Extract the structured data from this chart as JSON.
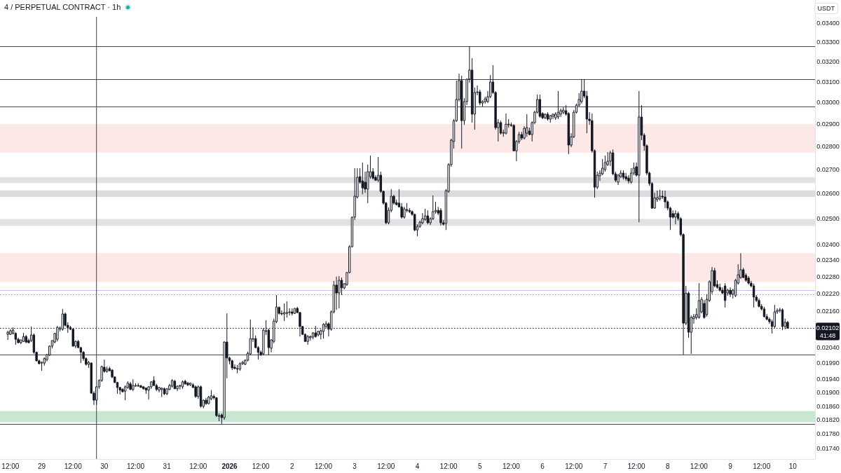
{
  "chart_data": {
    "type": "candlestick",
    "title": "4 / PERPETUAL CONTRACT · 1h",
    "ylabel": "USDT",
    "annotations": [
      "41:48"
    ],
    "color": "#131722",
    "log": true,
    "xlim": [
      "2025-12-28T08:00",
      "2026-01-10T08:30"
    ],
    "ylim": [
      0.01711,
      0.03525
    ],
    "xticks": [
      {
        "value": "2025-12-28T12:00",
        "label": "12:00"
      },
      {
        "value": "2025-12-29",
        "label": "29"
      },
      {
        "value": "2025-12-29T12:00",
        "label": "12:00"
      },
      {
        "value": "2025-12-30",
        "label": "30"
      },
      {
        "value": "2025-12-30T12:00",
        "label": "12:00"
      },
      {
        "value": "2025-12-31",
        "label": "31"
      },
      {
        "value": "2025-12-31T12:00",
        "label": "12:00"
      },
      {
        "value": "2026-01-01",
        "label": "2026"
      },
      {
        "value": "2026-01-01T12:00",
        "label": "12:00"
      },
      {
        "value": "2026-01-02",
        "label": "2"
      },
      {
        "value": "2026-01-02T12:00",
        "label": "12:00"
      },
      {
        "value": "2026-01-03",
        "label": "3"
      },
      {
        "value": "2026-01-03T12:00",
        "label": "12:00"
      },
      {
        "value": "2026-01-04",
        "label": "4"
      },
      {
        "value": "2026-01-04T12:00",
        "label": "12:00"
      },
      {
        "value": "2026-01-05",
        "label": "5"
      },
      {
        "value": "2026-01-05T12:00",
        "label": "12:00"
      },
      {
        "value": "2026-01-06",
        "label": "6"
      },
      {
        "value": "2026-01-06T12:00",
        "label": "12:00"
      },
      {
        "value": "2026-01-07",
        "label": "7"
      },
      {
        "value": "2026-01-07T12:00",
        "label": "12:00"
      },
      {
        "value": "2026-01-08",
        "label": "8"
      },
      {
        "value": "2026-01-08T12:00",
        "label": "12:00"
      },
      {
        "value": "2026-01-09",
        "label": "9"
      },
      {
        "value": "2026-01-09T12:00",
        "label": "12:00"
      },
      {
        "value": "2026-01-10",
        "label": "10"
      }
    ],
    "yticks": [
      {
        "value": 0.034,
        "label": "0.03400"
      },
      {
        "value": 0.033,
        "label": "0.03300"
      },
      {
        "value": 0.032,
        "label": "0.03200"
      },
      {
        "value": 0.031,
        "label": "0.03100"
      },
      {
        "value": 0.03,
        "label": "0.03000"
      },
      {
        "value": 0.029,
        "label": "0.02900"
      },
      {
        "value": 0.028,
        "label": "0.02800"
      },
      {
        "value": 0.027,
        "label": "0.02700"
      },
      {
        "value": 0.026,
        "label": "0.02600"
      },
      {
        "value": 0.025,
        "label": "0.02500"
      },
      {
        "value": 0.024,
        "label": "0.02400"
      },
      {
        "value": 0.0234,
        "label": "0.02340"
      },
      {
        "value": 0.0228,
        "label": "0.02280"
      },
      {
        "value": 0.0222,
        "label": "0.02220"
      },
      {
        "value": 0.0216,
        "label": "0.02160"
      },
      {
        "value": 0.0204,
        "label": "0.02040"
      },
      {
        "value": 0.0199,
        "label": "0.01990"
      },
      {
        "value": 0.0194,
        "label": "0.01940"
      },
      {
        "value": 0.019,
        "label": "0.01900"
      },
      {
        "value": 0.0186,
        "label": "0.01860"
      },
      {
        "value": 0.0182,
        "label": "0.01820"
      },
      {
        "value": 0.0178,
        "label": "0.01780"
      },
      {
        "value": 0.0174,
        "label": "0.01740"
      }
    ],
    "bands": [
      {
        "axis": "y",
        "from": 0.02772,
        "to": 0.029,
        "color": "#fde8e8"
      },
      {
        "axis": "y",
        "from": 0.02261,
        "to": 0.02366,
        "color": "#fde8e8"
      },
      {
        "axis": "y",
        "from": 0.02585,
        "to": 0.02612,
        "color": "#dcdcdf"
      },
      {
        "axis": "y",
        "from": 0.02642,
        "to": 0.02667,
        "color": "#e2e2e5"
      },
      {
        "axis": "y",
        "from": 0.0247,
        "to": 0.02497,
        "color": "#e2e2e5"
      },
      {
        "axis": "y",
        "from": 0.01813,
        "to": 0.01845,
        "color": "#c8e6d2"
      }
    ],
    "ref_lines": [
      {
        "axis": "y",
        "value": 0.03277,
        "color": "#434651"
      },
      {
        "axis": "y",
        "value": 0.03112,
        "color": "#434651"
      },
      {
        "axis": "y",
        "value": 0.02981,
        "color": "#434651"
      },
      {
        "axis": "y",
        "value": 0.02017,
        "color": "#434651"
      },
      {
        "axis": "y",
        "value": 0.01808,
        "color": "#434651"
      },
      {
        "axis": "y",
        "value": 0.02218,
        "color": "#9598a1",
        "line_style": "dotted"
      },
      {
        "axis": "y",
        "value": 0.02233,
        "color": "#c9bde6"
      },
      {
        "axis": "x",
        "value": "2025-12-29T21:00",
        "color": "#434651"
      },
      {
        "axis": "y",
        "value": 0.02102,
        "label": "0.02102",
        "color": "#131722",
        "line_style": "dotted"
      }
    ],
    "x": [
      "2025-12-28T11:00",
      "2025-12-28T12:00",
      "2025-12-28T13:00",
      "2025-12-28T14:00",
      "2025-12-28T15:00",
      "2025-12-28T16:00",
      "2025-12-28T17:00",
      "2025-12-28T18:00",
      "2025-12-28T19:00",
      "2025-12-28T20:00",
      "2025-12-28T21:00",
      "2025-12-28T22:00",
      "2025-12-28T23:00",
      "2025-12-29T00:00",
      "2025-12-29T01:00",
      "2025-12-29T02:00",
      "2025-12-29T03:00",
      "2025-12-29T04:00",
      "2025-12-29T05:00",
      "2025-12-29T06:00",
      "2025-12-29T07:00",
      "2025-12-29T08:00",
      "2025-12-29T09:00",
      "2025-12-29T10:00",
      "2025-12-29T11:00",
      "2025-12-29T12:00",
      "2025-12-29T13:00",
      "2025-12-29T14:00",
      "2025-12-29T15:00",
      "2025-12-29T16:00",
      "2025-12-29T17:00",
      "2025-12-29T18:00",
      "2025-12-29T19:00",
      "2025-12-29T20:00",
      "2025-12-29T21:00",
      "2025-12-29T22:00",
      "2025-12-29T23:00",
      "2025-12-30T00:00",
      "2025-12-30T01:00",
      "2025-12-30T02:00",
      "2025-12-30T03:00",
      "2025-12-30T04:00",
      "2025-12-30T05:00",
      "2025-12-30T06:00",
      "2025-12-30T07:00",
      "2025-12-30T08:00",
      "2025-12-30T09:00",
      "2025-12-30T10:00",
      "2025-12-30T11:00",
      "2025-12-30T12:00",
      "2025-12-30T13:00",
      "2025-12-30T14:00",
      "2025-12-30T15:00",
      "2025-12-30T16:00",
      "2025-12-30T17:00",
      "2025-12-30T18:00",
      "2025-12-30T19:00",
      "2025-12-30T20:00",
      "2025-12-30T21:00",
      "2025-12-30T22:00",
      "2025-12-30T23:00",
      "2025-12-31T00:00",
      "2025-12-31T01:00",
      "2025-12-31T02:00",
      "2025-12-31T03:00",
      "2025-12-31T04:00",
      "2025-12-31T05:00",
      "2025-12-31T06:00",
      "2025-12-31T07:00",
      "2025-12-31T08:00",
      "2025-12-31T09:00",
      "2025-12-31T10:00",
      "2025-12-31T11:00",
      "2025-12-31T12:00",
      "2025-12-31T13:00",
      "2025-12-31T14:00",
      "2025-12-31T15:00",
      "2025-12-31T16:00",
      "2025-12-31T17:00",
      "2025-12-31T18:00",
      "2025-12-31T19:00",
      "2025-12-31T20:00",
      "2025-12-31T21:00",
      "2025-12-31T22:00",
      "2025-12-31T23:00",
      "2026-01-01T00:00",
      "2026-01-01T01:00",
      "2026-01-01T02:00",
      "2026-01-01T03:00",
      "2026-01-01T04:00",
      "2026-01-01T05:00",
      "2026-01-01T06:00",
      "2026-01-01T07:00",
      "2026-01-01T08:00",
      "2026-01-01T09:00",
      "2026-01-01T10:00",
      "2026-01-01T11:00",
      "2026-01-01T12:00",
      "2026-01-01T13:00",
      "2026-01-01T14:00",
      "2026-01-01T15:00",
      "2026-01-01T16:00",
      "2026-01-01T17:00",
      "2026-01-01T18:00",
      "2026-01-01T19:00",
      "2026-01-01T20:00",
      "2026-01-01T21:00",
      "2026-01-01T22:00",
      "2026-01-01T23:00",
      "2026-01-02T00:00",
      "2026-01-02T01:00",
      "2026-01-02T02:00",
      "2026-01-02T03:00",
      "2026-01-02T04:00",
      "2026-01-02T05:00",
      "2026-01-02T06:00",
      "2026-01-02T07:00",
      "2026-01-02T08:00",
      "2026-01-02T09:00",
      "2026-01-02T10:00",
      "2026-01-02T11:00",
      "2026-01-02T12:00",
      "2026-01-02T13:00",
      "2026-01-02T14:00",
      "2026-01-02T15:00",
      "2026-01-02T16:00",
      "2026-01-02T17:00",
      "2026-01-02T18:00",
      "2026-01-02T19:00",
      "2026-01-02T20:00",
      "2026-01-02T21:00",
      "2026-01-02T22:00",
      "2026-01-02T23:00",
      "2026-01-03T00:00",
      "2026-01-03T01:00",
      "2026-01-03T02:00",
      "2026-01-03T03:00",
      "2026-01-03T04:00",
      "2026-01-03T05:00",
      "2026-01-03T06:00",
      "2026-01-03T07:00",
      "2026-01-03T08:00",
      "2026-01-03T09:00",
      "2026-01-03T10:00",
      "2026-01-03T11:00",
      "2026-01-03T12:00",
      "2026-01-03T13:00",
      "2026-01-03T14:00",
      "2026-01-03T15:00",
      "2026-01-03T16:00",
      "2026-01-03T17:00",
      "2026-01-03T18:00",
      "2026-01-03T19:00",
      "2026-01-03T20:00",
      "2026-01-03T21:00",
      "2026-01-03T22:00",
      "2026-01-03T23:00",
      "2026-01-04T00:00",
      "2026-01-04T01:00",
      "2026-01-04T02:00",
      "2026-01-04T03:00",
      "2026-01-04T04:00",
      "2026-01-04T05:00",
      "2026-01-04T06:00",
      "2026-01-04T07:00",
      "2026-01-04T08:00",
      "2026-01-04T09:00",
      "2026-01-04T10:00",
      "2026-01-04T11:00",
      "2026-01-04T12:00",
      "2026-01-04T13:00",
      "2026-01-04T14:00",
      "2026-01-04T15:00",
      "2026-01-04T16:00",
      "2026-01-04T17:00",
      "2026-01-04T18:00",
      "2026-01-04T19:00",
      "2026-01-04T20:00",
      "2026-01-04T21:00",
      "2026-01-04T22:00",
      "2026-01-04T23:00",
      "2026-01-05T00:00",
      "2026-01-05T01:00",
      "2026-01-05T02:00",
      "2026-01-05T03:00",
      "2026-01-05T04:00",
      "2026-01-05T05:00",
      "2026-01-05T06:00",
      "2026-01-05T07:00",
      "2026-01-05T08:00",
      "2026-01-05T09:00",
      "2026-01-05T10:00",
      "2026-01-05T11:00",
      "2026-01-05T12:00",
      "2026-01-05T13:00",
      "2026-01-05T14:00",
      "2026-01-05T15:00",
      "2026-01-05T16:00",
      "2026-01-05T17:00",
      "2026-01-05T18:00",
      "2026-01-05T19:00",
      "2026-01-05T20:00",
      "2026-01-05T21:00",
      "2026-01-05T22:00",
      "2026-01-05T23:00",
      "2026-01-06T00:00",
      "2026-01-06T01:00",
      "2026-01-06T02:00",
      "2026-01-06T03:00",
      "2026-01-06T04:00",
      "2026-01-06T05:00",
      "2026-01-06T06:00",
      "2026-01-06T07:00",
      "2026-01-06T08:00",
      "2026-01-06T09:00",
      "2026-01-06T10:00",
      "2026-01-06T11:00",
      "2026-01-06T12:00",
      "2026-01-06T13:00",
      "2026-01-06T14:00",
      "2026-01-06T15:00",
      "2026-01-06T16:00",
      "2026-01-06T17:00",
      "2026-01-06T18:00",
      "2026-01-06T19:00",
      "2026-01-06T20:00",
      "2026-01-06T21:00",
      "2026-01-06T22:00",
      "2026-01-06T23:00",
      "2026-01-07T00:00",
      "2026-01-07T01:00",
      "2026-01-07T02:00",
      "2026-01-07T03:00",
      "2026-01-07T04:00",
      "2026-01-07T05:00",
      "2026-01-07T06:00",
      "2026-01-07T07:00",
      "2026-01-07T08:00",
      "2026-01-07T09:00",
      "2026-01-07T10:00",
      "2026-01-07T11:00",
      "2026-01-07T12:00",
      "2026-01-07T13:00",
      "2026-01-07T14:00",
      "2026-01-07T15:00",
      "2026-01-07T16:00",
      "2026-01-07T17:00",
      "2026-01-07T18:00",
      "2026-01-07T19:00",
      "2026-01-07T20:00",
      "2026-01-07T21:00",
      "2026-01-07T22:00",
      "2026-01-07T23:00",
      "2026-01-08T00:00",
      "2026-01-08T01:00",
      "2026-01-08T02:00",
      "2026-01-08T03:00",
      "2026-01-08T04:00",
      "2026-01-08T05:00",
      "2026-01-08T06:00",
      "2026-01-08T07:00",
      "2026-01-08T08:00",
      "2026-01-08T09:00",
      "2026-01-08T10:00",
      "2026-01-08T11:00",
      "2026-01-08T12:00",
      "2026-01-08T13:00",
      "2026-01-08T14:00",
      "2026-01-08T15:00",
      "2026-01-08T16:00",
      "2026-01-08T17:00",
      "2026-01-08T18:00",
      "2026-01-08T19:00",
      "2026-01-08T20:00",
      "2026-01-08T21:00",
      "2026-01-08T22:00",
      "2026-01-08T23:00",
      "2026-01-09T00:00",
      "2026-01-09T01:00",
      "2026-01-09T02:00",
      "2026-01-09T03:00",
      "2026-01-09T04:00",
      "2026-01-09T05:00",
      "2026-01-09T06:00",
      "2026-01-09T07:00",
      "2026-01-09T08:00",
      "2026-01-09T09:00",
      "2026-01-09T10:00",
      "2026-01-09T11:00",
      "2026-01-09T12:00",
      "2026-01-09T13:00",
      "2026-01-09T14:00",
      "2026-01-09T15:00",
      "2026-01-09T16:00",
      "2026-01-09T17:00",
      "2026-01-09T18:00",
      "2026-01-09T19:00",
      "2026-01-09T20:00",
      "2026-01-09T21:00",
      "2026-01-09T22:00"
    ],
    "ohlc": [
      [
        0.02082,
        0.02094,
        0.02064,
        0.02089
      ],
      [
        0.02082,
        0.02099,
        0.0208,
        0.02094
      ],
      [
        0.02085,
        0.02105,
        0.02082,
        0.02096
      ],
      [
        0.02085,
        0.02089,
        0.02048,
        0.02066
      ],
      [
        0.02066,
        0.02071,
        0.02053,
        0.02055
      ],
      [
        0.02055,
        0.02064,
        0.0205,
        0.02064
      ],
      [
        0.02059,
        0.02087,
        0.02057,
        0.02075
      ],
      [
        0.02075,
        0.0208,
        0.02053,
        0.02057
      ],
      [
        0.02062,
        0.02068,
        0.02053,
        0.02055
      ],
      [
        0.02062,
        0.02108,
        0.02057,
        0.0208
      ],
      [
        0.0208,
        0.02085,
        0.02019,
        0.02024
      ],
      [
        0.02024,
        0.02026,
        0.01995,
        0.01997
      ],
      [
        0.01997,
        0.02001,
        0.01986,
        0.01988
      ],
      [
        0.0199,
        0.01995,
        0.01966,
        0.01992
      ],
      [
        0.0199,
        0.02008,
        0.01982,
        0.02004
      ],
      [
        0.02001,
        0.02019,
        0.01995,
        0.02017
      ],
      [
        0.02015,
        0.02046,
        0.02012,
        0.02044
      ],
      [
        0.02044,
        0.02062,
        0.02037,
        0.02062
      ],
      [
        0.02057,
        0.02087,
        0.02053,
        0.02085
      ],
      [
        0.02066,
        0.0211,
        0.02059,
        0.02105
      ],
      [
        0.02099,
        0.02108,
        0.02092,
        0.02103
      ],
      [
        0.02099,
        0.02167,
        0.02094,
        0.0215
      ],
      [
        0.0215,
        0.02155,
        0.02108,
        0.02112
      ],
      [
        0.02112,
        0.02122,
        0.02087,
        0.02105
      ],
      [
        0.02105,
        0.0211,
        0.02096,
        0.02099
      ],
      [
        0.02099,
        0.02101,
        0.02041,
        0.02044
      ],
      [
        0.02044,
        0.02062,
        0.02037,
        0.02059
      ],
      [
        0.02059,
        0.02064,
        0.02037,
        0.02039
      ],
      [
        0.02039,
        0.02041,
        0.0199,
        0.02024
      ],
      [
        0.02024,
        0.02028,
        0.01997,
        0.02004
      ],
      [
        0.02004,
        0.02008,
        0.01982,
        0.01986
      ],
      [
        0.01986,
        0.01997,
        0.01975,
        0.01992
      ],
      [
        0.0199,
        0.01992,
        0.01896,
        0.01898
      ],
      [
        0.01898,
        0.01904,
        0.01863,
        0.01877
      ],
      [
        0.01877,
        0.01919,
        0.01863,
        0.01917
      ],
      [
        0.01917,
        0.0194,
        0.01911,
        0.01936
      ],
      [
        0.01936,
        0.01982,
        0.01932,
        0.01979
      ],
      [
        0.01977,
        0.02001,
        0.0196,
        0.01964
      ],
      [
        0.01964,
        0.01979,
        0.0196,
        0.01971
      ],
      [
        0.01973,
        0.01979,
        0.01964,
        0.01966
      ],
      [
        0.01968,
        0.01971,
        0.01943,
        0.01947
      ],
      [
        0.01947,
        0.01949,
        0.01928,
        0.0193
      ],
      [
        0.0193,
        0.01932,
        0.01896,
        0.01915
      ],
      [
        0.01915,
        0.01917,
        0.01894,
        0.01907
      ],
      [
        0.01909,
        0.01913,
        0.019,
        0.01902
      ],
      [
        0.01904,
        0.01921,
        0.01877,
        0.01917
      ],
      [
        0.01915,
        0.01934,
        0.01911,
        0.01928
      ],
      [
        0.01926,
        0.01932,
        0.01907,
        0.01909
      ],
      [
        0.01909,
        0.0194,
        0.01904,
        0.01921
      ],
      [
        0.01919,
        0.01928,
        0.01917,
        0.01921
      ],
      [
        0.01921,
        0.01928,
        0.01917,
        0.0192
      ],
      [
        0.0192,
        0.01923,
        0.01915,
        0.01915
      ],
      [
        0.01917,
        0.01919,
        0.01909,
        0.01911
      ],
      [
        0.01913,
        0.01915,
        0.01896,
        0.01907
      ],
      [
        0.01907,
        0.01919,
        0.01879,
        0.01917
      ],
      [
        0.01917,
        0.01934,
        0.01911,
        0.01932
      ],
      [
        0.01936,
        0.01949,
        0.01919,
        0.01921
      ],
      [
        0.01921,
        0.01926,
        0.01904,
        0.01909
      ],
      [
        0.01907,
        0.01917,
        0.019,
        0.01915
      ],
      [
        0.01909,
        0.01915,
        0.01886,
        0.01913
      ],
      [
        0.01911,
        0.01915,
        0.01892,
        0.01896
      ],
      [
        0.01896,
        0.01913,
        0.01892,
        0.01911
      ],
      [
        0.01909,
        0.01926,
        0.01907,
        0.01921
      ],
      [
        0.01919,
        0.0194,
        0.01915,
        0.01936
      ],
      [
        0.01934,
        0.01938,
        0.01911,
        0.01911
      ],
      [
        0.01911,
        0.01921,
        0.01904,
        0.01919
      ],
      [
        0.01919,
        0.01923,
        0.01909,
        0.01921
      ],
      [
        0.01917,
        0.01936,
        0.01911,
        0.01932
      ],
      [
        0.01934,
        0.01938,
        0.01923,
        0.01926
      ],
      [
        0.01928,
        0.01932,
        0.01919,
        0.01923
      ],
      [
        0.01923,
        0.0193,
        0.01919,
        0.01928
      ],
      [
        0.01923,
        0.01928,
        0.01913,
        0.01915
      ],
      [
        0.01917,
        0.01921,
        0.01884,
        0.01888
      ],
      [
        0.01888,
        0.01921,
        0.01881,
        0.01917
      ],
      [
        0.01917,
        0.01921,
        0.01855,
        0.01859
      ],
      [
        0.01859,
        0.01879,
        0.01853,
        0.01877
      ],
      [
        0.01877,
        0.01884,
        0.01863,
        0.01867
      ],
      [
        0.01867,
        0.0189,
        0.01865,
        0.01886
      ],
      [
        0.01881,
        0.01907,
        0.01877,
        0.0189
      ],
      [
        0.01888,
        0.01894,
        0.01879,
        0.01884
      ],
      [
        0.01884,
        0.01886,
        0.01828,
        0.01832
      ],
      [
        0.01832,
        0.01838,
        0.01816,
        0.0183
      ],
      [
        0.01834,
        0.01838,
        0.01808,
        0.01826
      ],
      [
        0.01826,
        0.02059,
        0.0182,
        0.02057
      ],
      [
        0.02057,
        0.02152,
        0.01943,
        0.02006
      ],
      [
        0.02006,
        0.0201,
        0.01986,
        0.01997
      ],
      [
        0.01997,
        0.02001,
        0.01968,
        0.01975
      ],
      [
        0.01977,
        0.01986,
        0.01971,
        0.01973
      ],
      [
        0.01973,
        0.01984,
        0.01958,
        0.01971
      ],
      [
        0.01971,
        0.01992,
        0.01966,
        0.01988
      ],
      [
        0.01988,
        0.01997,
        0.01984,
        0.01992
      ],
      [
        0.01986,
        0.02001,
        0.01984,
        0.01999
      ],
      [
        0.01999,
        0.02026,
        0.01995,
        0.02021
      ],
      [
        0.02019,
        0.02131,
        0.02017,
        0.02068
      ],
      [
        0.02066,
        0.02105,
        0.02057,
        0.02068
      ],
      [
        0.02068,
        0.02078,
        0.02037,
        0.02039
      ],
      [
        0.02039,
        0.02044,
        0.02001,
        0.02024
      ],
      [
        0.02024,
        0.0203,
        0.02012,
        0.02017
      ],
      [
        0.02019,
        0.02103,
        0.02015,
        0.02096
      ],
      [
        0.02094,
        0.02129,
        0.0208,
        0.02092
      ],
      [
        0.02096,
        0.02101,
        0.02015,
        0.02039
      ],
      [
        0.02037,
        0.02066,
        0.02024,
        0.02064
      ],
      [
        0.02059,
        0.02134,
        0.02053,
        0.02126
      ],
      [
        0.02124,
        0.02215,
        0.02119,
        0.02174
      ],
      [
        0.02172,
        0.02176,
        0.02148,
        0.02152
      ],
      [
        0.02152,
        0.02162,
        0.02145,
        0.0215
      ],
      [
        0.0215,
        0.02186,
        0.02126,
        0.02155
      ],
      [
        0.02152,
        0.02193,
        0.02138,
        0.02155
      ],
      [
        0.02155,
        0.02169,
        0.02145,
        0.02157
      ],
      [
        0.02157,
        0.02169,
        0.02145,
        0.02152
      ],
      [
        0.02152,
        0.02169,
        0.0215,
        0.02169
      ],
      [
        0.02169,
        0.02174,
        0.02152,
        0.02155
      ],
      [
        0.02155,
        0.02157,
        0.02075,
        0.02108
      ],
      [
        0.02108,
        0.0211,
        0.0208,
        0.02082
      ],
      [
        0.02082,
        0.02085,
        0.02057,
        0.02059
      ],
      [
        0.02059,
        0.0208,
        0.02048,
        0.02075
      ],
      [
        0.02071,
        0.02078,
        0.02062,
        0.02075
      ],
      [
        0.02073,
        0.02089,
        0.02066,
        0.02087
      ],
      [
        0.02087,
        0.0211,
        0.02071,
        0.02075
      ],
      [
        0.0208,
        0.02094,
        0.02075,
        0.02092
      ],
      [
        0.02082,
        0.02099,
        0.02066,
        0.02094
      ],
      [
        0.02092,
        0.02119,
        0.02068,
        0.02115
      ],
      [
        0.02108,
        0.02126,
        0.02103,
        0.02117
      ],
      [
        0.02117,
        0.02122,
        0.02075,
        0.02099
      ],
      [
        0.02099,
        0.02162,
        0.02094,
        0.02157
      ],
      [
        0.02157,
        0.02265,
        0.02152,
        0.0225
      ],
      [
        0.0225,
        0.0228,
        0.02164,
        0.02222
      ],
      [
        0.02222,
        0.02282,
        0.02169,
        0.02267
      ],
      [
        0.02267,
        0.02277,
        0.02215,
        0.0224
      ],
      [
        0.0224,
        0.02257,
        0.02235,
        0.02255
      ],
      [
        0.02252,
        0.02297,
        0.02247,
        0.02295
      ],
      [
        0.02295,
        0.02396,
        0.02292,
        0.0239
      ],
      [
        0.0239,
        0.02506,
        0.02388,
        0.02504
      ],
      [
        0.02504,
        0.02705,
        0.02493,
        0.02588
      ],
      [
        0.02585,
        0.02705,
        0.02579,
        0.02666
      ],
      [
        0.02669,
        0.02705,
        0.0264,
        0.02646
      ],
      [
        0.02651,
        0.02729,
        0.02596,
        0.02622
      ],
      [
        0.02646,
        0.0269,
        0.02602,
        0.02617
      ],
      [
        0.02617,
        0.0272,
        0.0256,
        0.0269
      ],
      [
        0.02669,
        0.02759,
        0.0266,
        0.0269
      ],
      [
        0.0269,
        0.02705,
        0.02657,
        0.02663
      ],
      [
        0.02666,
        0.02675,
        0.02651,
        0.02654
      ],
      [
        0.02654,
        0.02753,
        0.02646,
        0.02675
      ],
      [
        0.02675,
        0.0269,
        0.02602,
        0.02608
      ],
      [
        0.02608,
        0.02611,
        0.02554,
        0.0256
      ],
      [
        0.0256,
        0.02565,
        0.02476,
        0.02482
      ],
      [
        0.02482,
        0.02543,
        0.02476,
        0.02531
      ],
      [
        0.02531,
        0.02617,
        0.02523,
        0.02588
      ],
      [
        0.02588,
        0.02594,
        0.02554,
        0.0256
      ],
      [
        0.02562,
        0.02574,
        0.02551,
        0.02554
      ],
      [
        0.0256,
        0.02617,
        0.02543,
        0.02545
      ],
      [
        0.02545,
        0.0256,
        0.02498,
        0.02504
      ],
      [
        0.02504,
        0.02545,
        0.02498,
        0.02537
      ],
      [
        0.02534,
        0.0256,
        0.02523,
        0.02531
      ],
      [
        0.02531,
        0.0254,
        0.0252,
        0.02526
      ],
      [
        0.02526,
        0.02531,
        0.02509,
        0.02515
      ],
      [
        0.02515,
        0.02518,
        0.02449,
        0.02454
      ],
      [
        0.02454,
        0.02476,
        0.0243,
        0.02468
      ],
      [
        0.02468,
        0.0249,
        0.02462,
        0.02484
      ],
      [
        0.02482,
        0.0252,
        0.02476,
        0.02498
      ],
      [
        0.02495,
        0.02537,
        0.0249,
        0.02509
      ],
      [
        0.02509,
        0.02531,
        0.02476,
        0.02482
      ],
      [
        0.02482,
        0.02504,
        0.02473,
        0.02498
      ],
      [
        0.02498,
        0.02591,
        0.02493,
        0.02526
      ],
      [
        0.02526,
        0.02565,
        0.02518,
        0.02531
      ],
      [
        0.02531,
        0.02545,
        0.02512,
        0.0252
      ],
      [
        0.02531,
        0.0254,
        0.02471,
        0.02482
      ],
      [
        0.02482,
        0.02493,
        0.02471,
        0.02476
      ],
      [
        0.02479,
        0.02617,
        0.02454,
        0.02611
      ],
      [
        0.02608,
        0.02726,
        0.02602,
        0.0272
      ],
      [
        0.0272,
        0.02833,
        0.02711,
        0.02827
      ],
      [
        0.02821,
        0.02922,
        0.0279,
        0.02915
      ],
      [
        0.02915,
        0.03105,
        0.02909,
        0.03014
      ],
      [
        0.03014,
        0.03139,
        0.03004,
        0.03105
      ],
      [
        0.03105,
        0.03129,
        0.0279,
        0.02915
      ],
      [
        0.02915,
        0.0302,
        0.02896,
        0.03004
      ],
      [
        0.03004,
        0.03115,
        0.02987,
        0.03112
      ],
      [
        0.03112,
        0.03277,
        0.03095,
        0.03157
      ],
      [
        0.03157,
        0.03216,
        0.02906,
        0.02945
      ],
      [
        0.02945,
        0.03071,
        0.02874,
        0.03047
      ],
      [
        0.03047,
        0.03081,
        0.03034,
        0.0305
      ],
      [
        0.0305,
        0.03061,
        0.02987,
        0.02997
      ],
      [
        0.02997,
        0.0301,
        0.02981,
        0.03004
      ],
      [
        0.03004,
        0.03027,
        0.02994,
        0.03017
      ],
      [
        0.03004,
        0.03054,
        0.02997,
        0.03027
      ],
      [
        0.03027,
        0.03132,
        0.0302,
        0.03098
      ],
      [
        0.03098,
        0.03181,
        0.0304,
        0.03047
      ],
      [
        0.03047,
        0.03054,
        0.02874,
        0.02883
      ],
      [
        0.02883,
        0.02922,
        0.02821,
        0.02906
      ],
      [
        0.02906,
        0.02915,
        0.02852,
        0.02858
      ],
      [
        0.02858,
        0.02874,
        0.02842,
        0.02861
      ],
      [
        0.02858,
        0.02948,
        0.02852,
        0.02899
      ],
      [
        0.02896,
        0.02922,
        0.02883,
        0.02899
      ],
      [
        0.02896,
        0.02906,
        0.02887,
        0.02893
      ],
      [
        0.02893,
        0.02899,
        0.02777,
        0.0278
      ],
      [
        0.0278,
        0.02827,
        0.02735,
        0.02821
      ],
      [
        0.02821,
        0.02864,
        0.02811,
        0.02852
      ],
      [
        0.02852,
        0.02864,
        0.02827,
        0.02836
      ],
      [
        0.02836,
        0.0289,
        0.0283,
        0.0288
      ],
      [
        0.02858,
        0.02945,
        0.02842,
        0.02883
      ],
      [
        0.02868,
        0.02883,
        0.02849,
        0.02852
      ],
      [
        0.02852,
        0.02912,
        0.02821,
        0.02906
      ],
      [
        0.02906,
        0.02961,
        0.02899,
        0.02954
      ],
      [
        0.02954,
        0.03037,
        0.02948,
        0.03014
      ],
      [
        0.03014,
        0.03037,
        0.02928,
        0.02935
      ],
      [
        0.02948,
        0.02954,
        0.02922,
        0.02928
      ],
      [
        0.02928,
        0.02948,
        0.02922,
        0.02945
      ],
      [
        0.02945,
        0.02954,
        0.02915,
        0.02922
      ],
      [
        0.02922,
        0.02941,
        0.02906,
        0.02938
      ],
      [
        0.02935,
        0.02948,
        0.02922,
        0.02945
      ],
      [
        0.02928,
        0.02954,
        0.02919,
        0.02945
      ],
      [
        0.02932,
        0.03054,
        0.02922,
        0.02954
      ],
      [
        0.02945,
        0.02971,
        0.02932,
        0.02961
      ],
      [
        0.02954,
        0.02977,
        0.02945,
        0.02964
      ],
      [
        0.02961,
        0.02987,
        0.02938,
        0.02945
      ],
      [
        0.02948,
        0.02954,
        0.02765,
        0.02805
      ],
      [
        0.02805,
        0.02858,
        0.02796,
        0.02842
      ],
      [
        0.02842,
        0.02964,
        0.02836,
        0.02954
      ],
      [
        0.02954,
        0.02994,
        0.02948,
        0.02987
      ],
      [
        0.02987,
        0.03044,
        0.02981,
        0.03014
      ],
      [
        0.03004,
        0.03112,
        0.02994,
        0.03054
      ],
      [
        0.03054,
        0.03112,
        0.0302,
        0.0303
      ],
      [
        0.0303,
        0.03054,
        0.02858,
        0.02922
      ],
      [
        0.02922,
        0.02954,
        0.02896,
        0.02915
      ],
      [
        0.02915,
        0.02948,
        0.02771,
        0.0278
      ],
      [
        0.0278,
        0.02786,
        0.02582,
        0.02625
      ],
      [
        0.02625,
        0.0269,
        0.02617,
        0.02675
      ],
      [
        0.02672,
        0.02696,
        0.02651,
        0.02684
      ],
      [
        0.02681,
        0.02744,
        0.02675,
        0.02705
      ],
      [
        0.02699,
        0.02759,
        0.0269,
        0.02729
      ],
      [
        0.0272,
        0.02774,
        0.02714,
        0.02735
      ],
      [
        0.02735,
        0.0278,
        0.02714,
        0.02771
      ],
      [
        0.02771,
        0.02786,
        0.02675,
        0.02681
      ],
      [
        0.02681,
        0.0269,
        0.02646,
        0.02654
      ],
      [
        0.02646,
        0.02681,
        0.02634,
        0.02675
      ],
      [
        0.02669,
        0.02696,
        0.02663,
        0.02684
      ],
      [
        0.02684,
        0.02696,
        0.02657,
        0.02666
      ],
      [
        0.02669,
        0.02684,
        0.02651,
        0.0266
      ],
      [
        0.02663,
        0.02675,
        0.0264,
        0.02651
      ],
      [
        0.02646,
        0.02705,
        0.0264,
        0.02684
      ],
      [
        0.02684,
        0.02729,
        0.02675,
        0.02705
      ],
      [
        0.02711,
        0.02729,
        0.02669,
        0.02675
      ],
      [
        0.02675,
        0.03054,
        0.02484,
        0.02932
      ],
      [
        0.02932,
        0.02987,
        0.02827,
        0.02849
      ],
      [
        0.02849,
        0.02858,
        0.0278,
        0.02802
      ],
      [
        0.02802,
        0.02808,
        0.02675,
        0.02684
      ],
      [
        0.02684,
        0.0269,
        0.02631,
        0.0264
      ],
      [
        0.0264,
        0.02646,
        0.02537,
        0.0254
      ],
      [
        0.0254,
        0.02602,
        0.02537,
        0.02582
      ],
      [
        0.02574,
        0.02611,
        0.02565,
        0.02582
      ],
      [
        0.02577,
        0.02614,
        0.02571,
        0.02588
      ],
      [
        0.02588,
        0.02611,
        0.02577,
        0.02585
      ],
      [
        0.02585,
        0.02611,
        0.0254,
        0.02565
      ],
      [
        0.02565,
        0.02571,
        0.02531,
        0.0254
      ],
      [
        0.0254,
        0.02545,
        0.02454,
        0.02504
      ],
      [
        0.02518,
        0.02531,
        0.02498,
        0.02504
      ],
      [
        0.02504,
        0.02531,
        0.02476,
        0.02518
      ],
      [
        0.02518,
        0.02526,
        0.0249,
        0.02498
      ],
      [
        0.02498,
        0.02504,
        0.0243,
        0.02436
      ],
      [
        0.02436,
        0.02441,
        0.02017,
        0.02119
      ],
      [
        0.02119,
        0.02247,
        0.02112,
        0.02221
      ],
      [
        0.02221,
        0.02227,
        0.02071,
        0.02089
      ],
      [
        0.02089,
        0.02145,
        0.02019,
        0.02138
      ],
      [
        0.02134,
        0.0215,
        0.02117,
        0.02141
      ],
      [
        0.02138,
        0.02169,
        0.02131,
        0.02148
      ],
      [
        0.02138,
        0.02257,
        0.02134,
        0.02196
      ],
      [
        0.02157,
        0.02208,
        0.02152,
        0.022
      ],
      [
        0.02186,
        0.02198,
        0.02134,
        0.02138
      ],
      [
        0.02148,
        0.02218,
        0.02141,
        0.022
      ],
      [
        0.02196,
        0.02267,
        0.02191,
        0.02262
      ],
      [
        0.02227,
        0.02315,
        0.02218,
        0.02302
      ],
      [
        0.02302,
        0.02312,
        0.02242,
        0.02247
      ],
      [
        0.02252,
        0.02267,
        0.02237,
        0.02242
      ],
      [
        0.02242,
        0.02255,
        0.02227,
        0.02232
      ],
      [
        0.02232,
        0.02242,
        0.02218,
        0.02222
      ],
      [
        0.02247,
        0.02257,
        0.02172,
        0.02196
      ],
      [
        0.02222,
        0.02237,
        0.02213,
        0.02232
      ],
      [
        0.02232,
        0.02242,
        0.02208,
        0.02218
      ],
      [
        0.02218,
        0.02237,
        0.02203,
        0.02232
      ],
      [
        0.02213,
        0.02272,
        0.02208,
        0.02267
      ],
      [
        0.02257,
        0.02325,
        0.02252,
        0.02287
      ],
      [
        0.02277,
        0.02366,
        0.02272,
        0.02305
      ],
      [
        0.02305,
        0.02312,
        0.02275,
        0.02277
      ],
      [
        0.02285,
        0.02292,
        0.02262,
        0.02267
      ],
      [
        0.02275,
        0.02282,
        0.02252,
        0.02257
      ],
      [
        0.02257,
        0.02265,
        0.02242,
        0.02247
      ],
      [
        0.02247,
        0.02255,
        0.02172,
        0.02208
      ],
      [
        0.02208,
        0.02215,
        0.02191,
        0.02196
      ],
      [
        0.02196,
        0.02203,
        0.02172,
        0.02176
      ],
      [
        0.02176,
        0.02184,
        0.02162,
        0.02167
      ],
      [
        0.02167,
        0.02174,
        0.02138,
        0.02141
      ],
      [
        0.02141,
        0.0215,
        0.02129,
        0.02132
      ],
      [
        0.02132,
        0.02138,
        0.02117,
        0.02124
      ],
      [
        0.02124,
        0.02131,
        0.02085,
        0.02108
      ],
      [
        0.02108,
        0.02181,
        0.02103,
        0.02157
      ],
      [
        0.02157,
        0.02169,
        0.0215,
        0.02162
      ],
      [
        0.02162,
        0.02171,
        0.02155,
        0.02164
      ],
      [
        0.02164,
        0.02169,
        0.02096,
        0.02108
      ],
      [
        0.02108,
        0.02134,
        0.02099,
        0.02122
      ],
      [
        0.02122,
        0.02127,
        0.02101,
        0.02102
      ]
    ]
  }
}
